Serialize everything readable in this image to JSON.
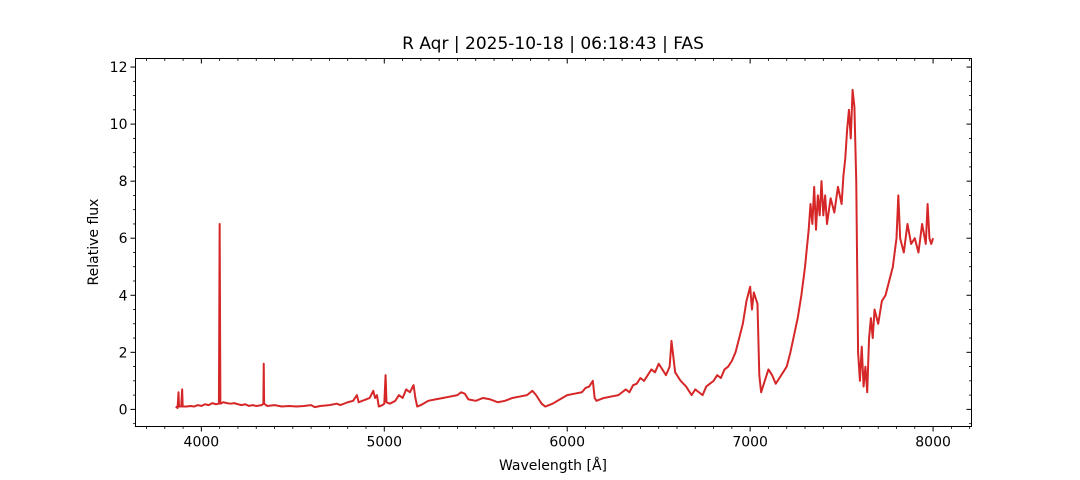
{
  "chart_data": {
    "type": "line",
    "title": "R Aqr | 2025-10-18 | 06:18:43 | FAS",
    "xlabel": "Wavelength [Å]",
    "ylabel": "Relative flux",
    "xlim": [
      3640,
      8210
    ],
    "ylim": [
      -0.6,
      12.3
    ],
    "x_ticks": [
      4000,
      5000,
      6000,
      7000,
      8000
    ],
    "y_ticks": [
      0,
      2,
      4,
      6,
      8,
      10,
      12
    ],
    "grid": false,
    "line_color": "#d62728",
    "series": [
      {
        "points": [
          [
            3860,
            0.1
          ],
          [
            3870,
            0.05
          ],
          [
            3875,
            0.6
          ],
          [
            3878,
            0.1
          ],
          [
            3890,
            0.1
          ],
          [
            3895,
            0.7
          ],
          [
            3898,
            0.1
          ],
          [
            3920,
            0.1
          ],
          [
            3940,
            0.12
          ],
          [
            3960,
            0.1
          ],
          [
            3980,
            0.15
          ],
          [
            4000,
            0.12
          ],
          [
            4020,
            0.18
          ],
          [
            4040,
            0.15
          ],
          [
            4060,
            0.22
          ],
          [
            4080,
            0.18
          ],
          [
            4096,
            0.2
          ],
          [
            4100,
            6.5
          ],
          [
            4104,
            0.2
          ],
          [
            4120,
            0.25
          ],
          [
            4140,
            0.22
          ],
          [
            4160,
            0.2
          ],
          [
            4180,
            0.22
          ],
          [
            4200,
            0.18
          ],
          [
            4220,
            0.15
          ],
          [
            4240,
            0.18
          ],
          [
            4260,
            0.12
          ],
          [
            4280,
            0.15
          ],
          [
            4300,
            0.12
          ],
          [
            4330,
            0.15
          ],
          [
            4339,
            0.2
          ],
          [
            4341,
            1.6
          ],
          [
            4343,
            0.2
          ],
          [
            4360,
            0.12
          ],
          [
            4400,
            0.15
          ],
          [
            4440,
            0.1
          ],
          [
            4480,
            0.12
          ],
          [
            4520,
            0.1
          ],
          [
            4560,
            0.12
          ],
          [
            4600,
            0.15
          ],
          [
            4620,
            0.08
          ],
          [
            4650,
            0.12
          ],
          [
            4700,
            0.15
          ],
          [
            4740,
            0.2
          ],
          [
            4760,
            0.15
          ],
          [
            4800,
            0.25
          ],
          [
            4830,
            0.3
          ],
          [
            4850,
            0.5
          ],
          [
            4860,
            0.25
          ],
          [
            4880,
            0.3
          ],
          [
            4900,
            0.35
          ],
          [
            4920,
            0.4
          ],
          [
            4940,
            0.65
          ],
          [
            4950,
            0.4
          ],
          [
            4960,
            0.5
          ],
          [
            4970,
            0.1
          ],
          [
            4990,
            0.15
          ],
          [
            5000,
            0.2
          ],
          [
            5007,
            1.2
          ],
          [
            5012,
            0.25
          ],
          [
            5030,
            0.2
          ],
          [
            5060,
            0.3
          ],
          [
            5080,
            0.5
          ],
          [
            5100,
            0.4
          ],
          [
            5120,
            0.7
          ],
          [
            5140,
            0.6
          ],
          [
            5160,
            0.85
          ],
          [
            5170,
            0.4
          ],
          [
            5180,
            0.1
          ],
          [
            5200,
            0.15
          ],
          [
            5240,
            0.3
          ],
          [
            5280,
            0.35
          ],
          [
            5320,
            0.4
          ],
          [
            5360,
            0.45
          ],
          [
            5400,
            0.5
          ],
          [
            5420,
            0.6
          ],
          [
            5440,
            0.55
          ],
          [
            5460,
            0.35
          ],
          [
            5500,
            0.3
          ],
          [
            5540,
            0.4
          ],
          [
            5580,
            0.35
          ],
          [
            5620,
            0.25
          ],
          [
            5660,
            0.3
          ],
          [
            5700,
            0.4
          ],
          [
            5740,
            0.45
          ],
          [
            5780,
            0.5
          ],
          [
            5810,
            0.65
          ],
          [
            5830,
            0.5
          ],
          [
            5860,
            0.2
          ],
          [
            5880,
            0.1
          ],
          [
            5920,
            0.2
          ],
          [
            5960,
            0.35
          ],
          [
            6000,
            0.5
          ],
          [
            6040,
            0.55
          ],
          [
            6080,
            0.6
          ],
          [
            6100,
            0.75
          ],
          [
            6120,
            0.8
          ],
          [
            6140,
            1.0
          ],
          [
            6150,
            0.4
          ],
          [
            6160,
            0.3
          ],
          [
            6200,
            0.4
          ],
          [
            6240,
            0.45
          ],
          [
            6280,
            0.5
          ],
          [
            6300,
            0.6
          ],
          [
            6320,
            0.7
          ],
          [
            6340,
            0.6
          ],
          [
            6360,
            0.85
          ],
          [
            6380,
            0.9
          ],
          [
            6400,
            1.1
          ],
          [
            6420,
            1.0
          ],
          [
            6440,
            1.2
          ],
          [
            6460,
            1.4
          ],
          [
            6480,
            1.3
          ],
          [
            6500,
            1.6
          ],
          [
            6520,
            1.4
          ],
          [
            6540,
            1.2
          ],
          [
            6560,
            1.5
          ],
          [
            6570,
            2.4
          ],
          [
            6590,
            1.3
          ],
          [
            6620,
            1.0
          ],
          [
            6650,
            0.8
          ],
          [
            6680,
            0.5
          ],
          [
            6700,
            0.7
          ],
          [
            6720,
            0.6
          ],
          [
            6740,
            0.5
          ],
          [
            6760,
            0.8
          ],
          [
            6780,
            0.9
          ],
          [
            6800,
            1.0
          ],
          [
            6820,
            1.2
          ],
          [
            6840,
            1.1
          ],
          [
            6860,
            1.4
          ],
          [
            6880,
            1.5
          ],
          [
            6900,
            1.7
          ],
          [
            6920,
            2.0
          ],
          [
            6940,
            2.5
          ],
          [
            6960,
            3.0
          ],
          [
            6980,
            3.8
          ],
          [
            7000,
            4.3
          ],
          [
            7010,
            3.5
          ],
          [
            7020,
            4.1
          ],
          [
            7040,
            3.7
          ],
          [
            7050,
            1.2
          ],
          [
            7060,
            0.6
          ],
          [
            7080,
            1.0
          ],
          [
            7100,
            1.4
          ],
          [
            7120,
            1.2
          ],
          [
            7140,
            0.9
          ],
          [
            7160,
            1.1
          ],
          [
            7180,
            1.3
          ],
          [
            7200,
            1.5
          ],
          [
            7220,
            2.0
          ],
          [
            7240,
            2.6
          ],
          [
            7260,
            3.2
          ],
          [
            7280,
            4.0
          ],
          [
            7300,
            5.0
          ],
          [
            7320,
            6.3
          ],
          [
            7330,
            7.2
          ],
          [
            7340,
            6.5
          ],
          [
            7350,
            7.8
          ],
          [
            7360,
            6.3
          ],
          [
            7370,
            7.5
          ],
          [
            7380,
            6.8
          ],
          [
            7390,
            8.0
          ],
          [
            7400,
            6.8
          ],
          [
            7410,
            7.5
          ],
          [
            7420,
            6.5
          ],
          [
            7440,
            7.4
          ],
          [
            7460,
            6.9
          ],
          [
            7480,
            7.8
          ],
          [
            7500,
            7.2
          ],
          [
            7510,
            8.2
          ],
          [
            7520,
            8.8
          ],
          [
            7530,
            9.8
          ],
          [
            7540,
            10.5
          ],
          [
            7550,
            9.5
          ],
          [
            7560,
            11.2
          ],
          [
            7570,
            10.6
          ],
          [
            7580,
            8.0
          ],
          [
            7590,
            2.0
          ],
          [
            7600,
            1.0
          ],
          [
            7610,
            2.2
          ],
          [
            7620,
            0.8
          ],
          [
            7630,
            1.5
          ],
          [
            7640,
            0.6
          ],
          [
            7650,
            2.5
          ],
          [
            7660,
            3.2
          ],
          [
            7670,
            2.5
          ],
          [
            7680,
            3.5
          ],
          [
            7700,
            3.0
          ],
          [
            7720,
            3.8
          ],
          [
            7740,
            4.0
          ],
          [
            7760,
            4.5
          ],
          [
            7780,
            5.0
          ],
          [
            7800,
            6.0
          ],
          [
            7810,
            7.5
          ],
          [
            7820,
            6.0
          ],
          [
            7840,
            5.5
          ],
          [
            7860,
            6.5
          ],
          [
            7880,
            5.8
          ],
          [
            7900,
            6.0
          ],
          [
            7920,
            5.5
          ],
          [
            7940,
            6.5
          ],
          [
            7960,
            5.8
          ],
          [
            7970,
            7.2
          ],
          [
            7980,
            6.0
          ],
          [
            7990,
            5.8
          ],
          [
            8000,
            6.0
          ]
        ]
      }
    ]
  }
}
